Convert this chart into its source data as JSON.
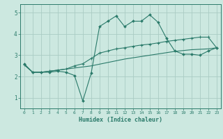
{
  "xlabel": "Humidex (Indice chaleur)",
  "background_color": "#cce8e0",
  "grid_color": "#aaccC4",
  "line_color": "#2a7a6a",
  "xlim": [
    -0.5,
    23.5
  ],
  "ylim": [
    0.5,
    5.4
  ],
  "line1_x": [
    0,
    1,
    2,
    3,
    4,
    5,
    6,
    7,
    8,
    9,
    10,
    11,
    12,
    13,
    14,
    15,
    16,
    17,
    18,
    19,
    20,
    21,
    22,
    23
  ],
  "line1_y": [
    2.6,
    2.2,
    2.2,
    2.2,
    2.25,
    2.2,
    2.05,
    0.85,
    2.15,
    4.35,
    4.6,
    4.85,
    4.35,
    4.6,
    4.6,
    4.9,
    4.55,
    3.8,
    3.2,
    3.05,
    3.05,
    3.0,
    3.2,
    3.35
  ],
  "line2_x": [
    0,
    1,
    2,
    3,
    4,
    5,
    6,
    7,
    8,
    9,
    10,
    11,
    12,
    13,
    14,
    15,
    16,
    17,
    18,
    19,
    20,
    21,
    22,
    23
  ],
  "line2_y": [
    2.55,
    2.2,
    2.2,
    2.25,
    2.3,
    2.35,
    2.4,
    2.45,
    2.5,
    2.58,
    2.66,
    2.74,
    2.82,
    2.88,
    2.94,
    3.0,
    3.06,
    3.12,
    3.18,
    3.22,
    3.26,
    3.28,
    3.3,
    3.35
  ],
  "line3_x": [
    0,
    1,
    2,
    3,
    4,
    5,
    6,
    7,
    8,
    9,
    10,
    11,
    12,
    13,
    14,
    15,
    16,
    17,
    18,
    19,
    20,
    21,
    22,
    23
  ],
  "line3_y": [
    2.55,
    2.2,
    2.2,
    2.25,
    2.3,
    2.35,
    2.5,
    2.6,
    2.85,
    3.1,
    3.2,
    3.3,
    3.35,
    3.42,
    3.48,
    3.52,
    3.58,
    3.65,
    3.7,
    3.75,
    3.8,
    3.85,
    3.85,
    3.35
  ],
  "yticks": [
    1,
    2,
    3,
    4,
    5
  ],
  "xticks": [
    0,
    1,
    2,
    3,
    4,
    5,
    6,
    7,
    8,
    9,
    10,
    11,
    12,
    13,
    14,
    15,
    16,
    17,
    18,
    19,
    20,
    21,
    22,
    23
  ]
}
